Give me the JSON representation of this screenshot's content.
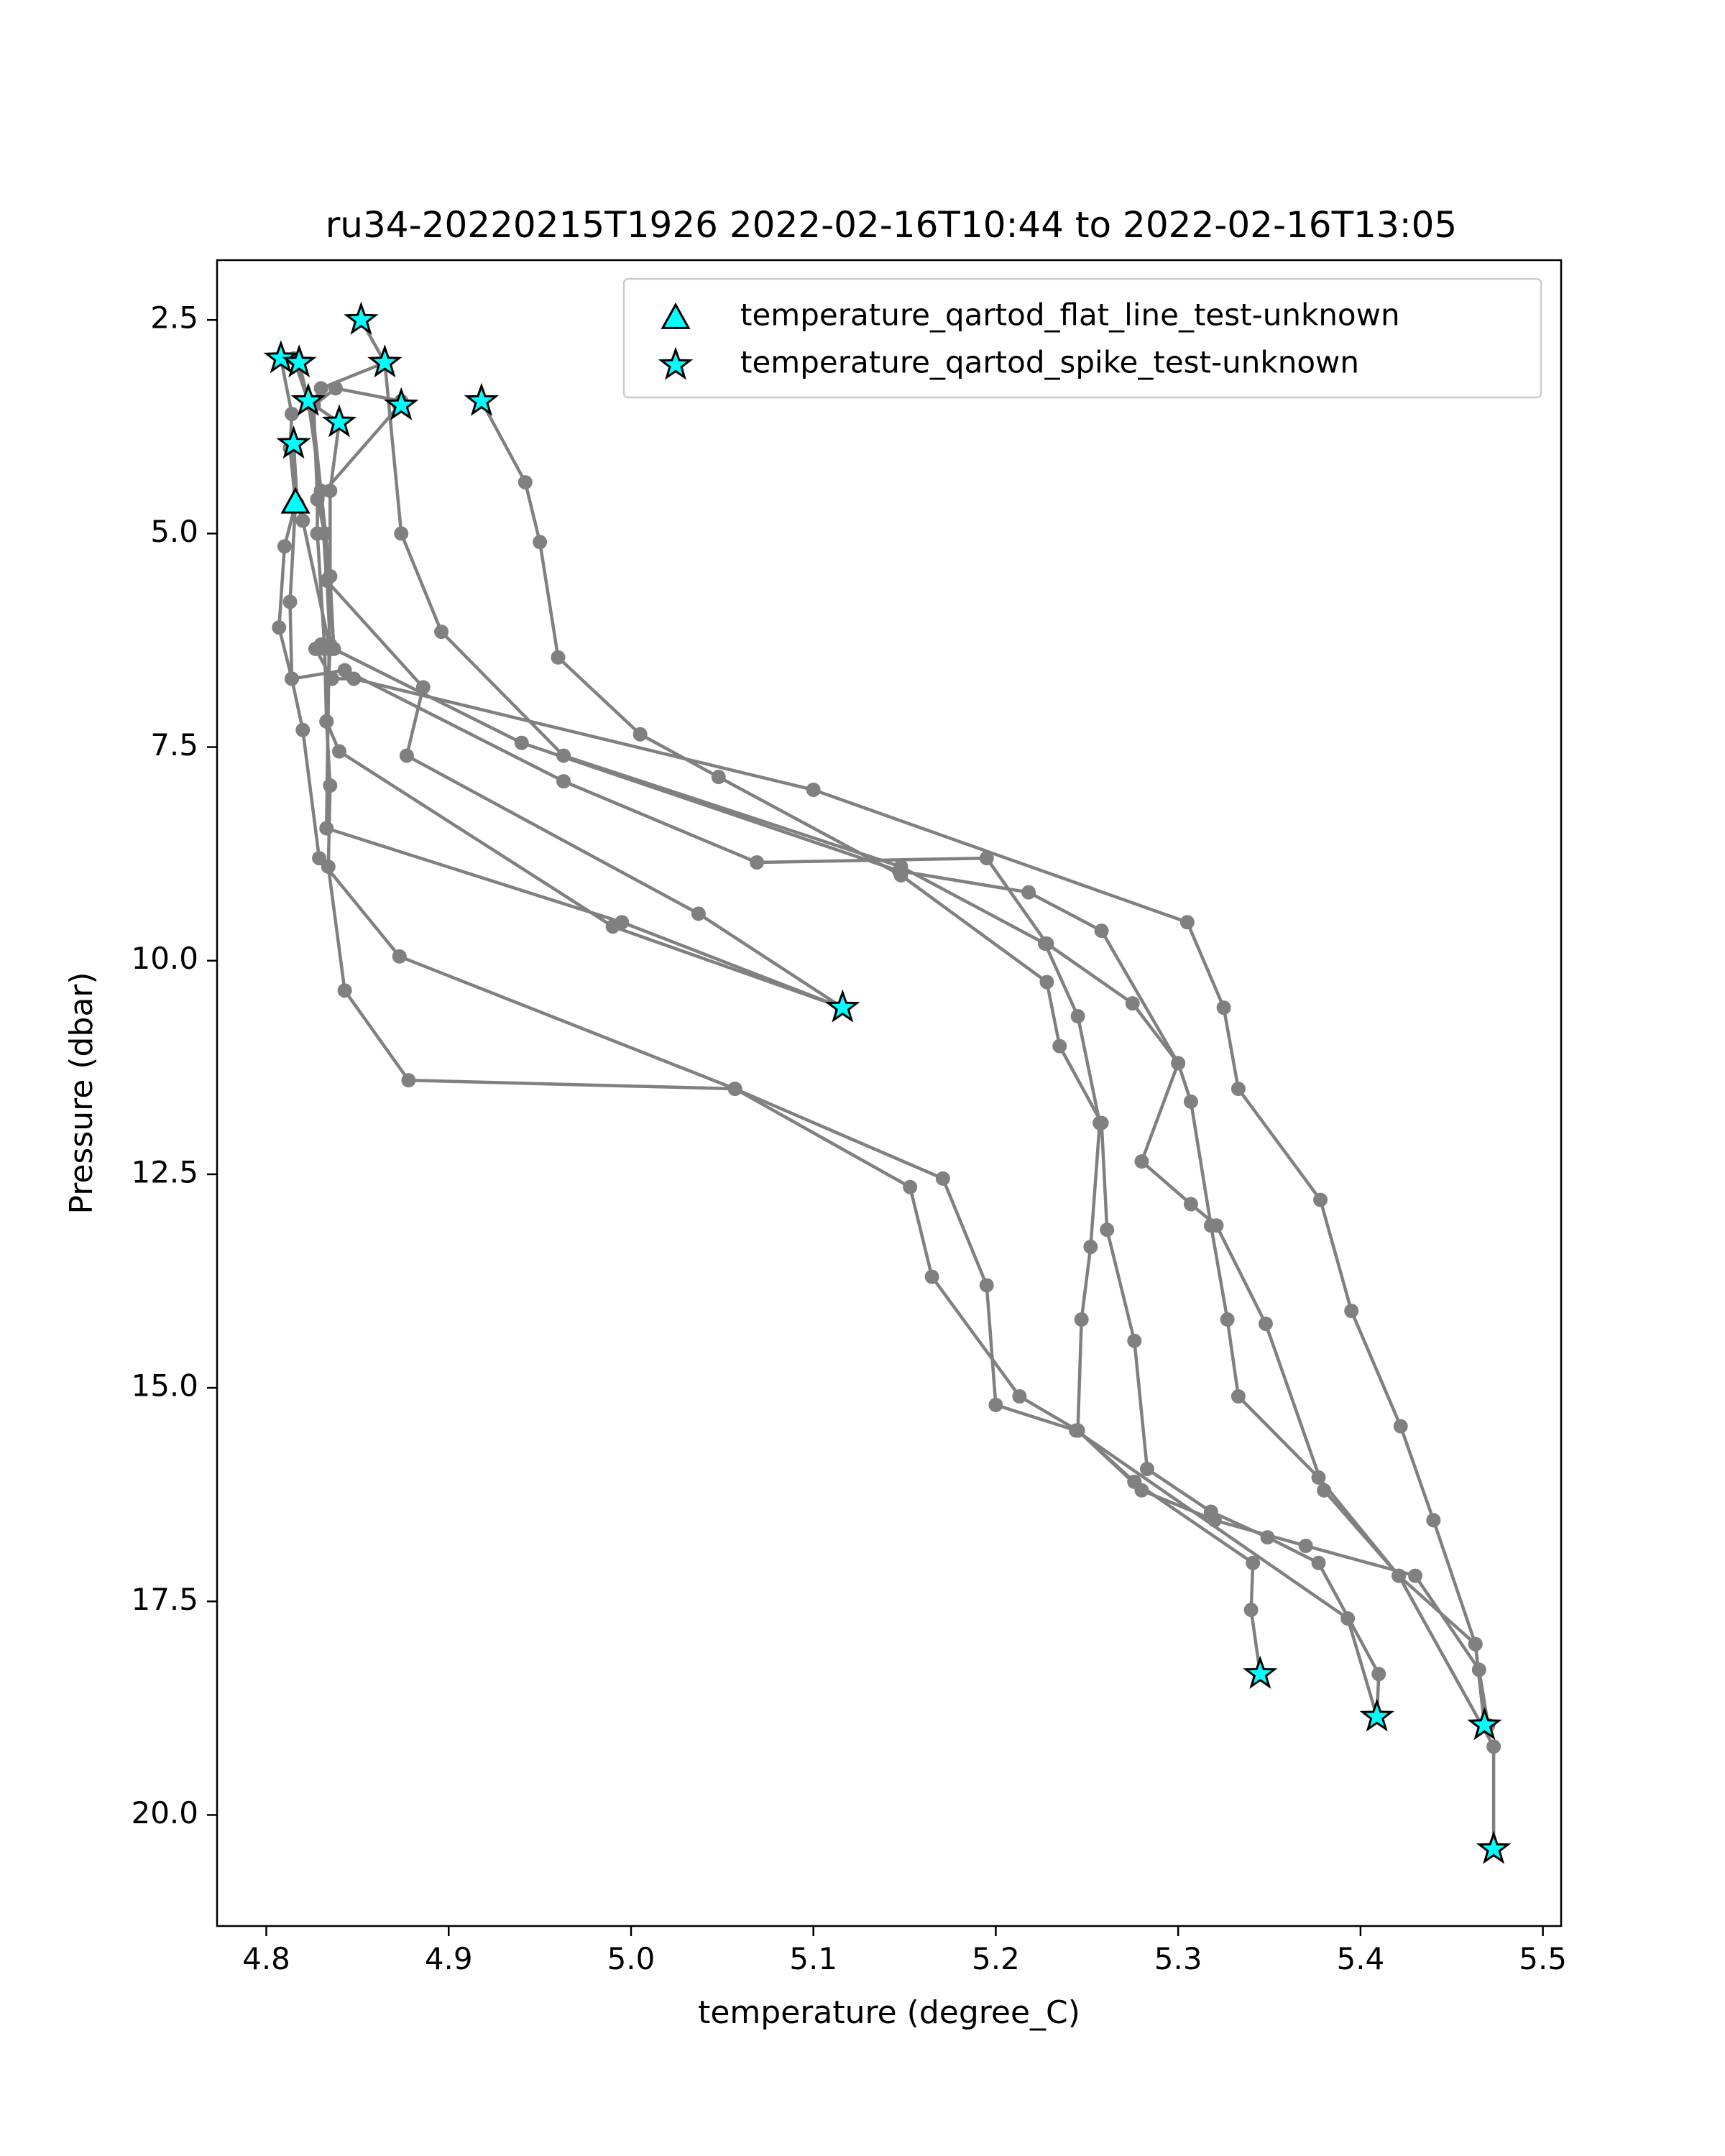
{
  "chart_data": {
    "type": "line",
    "title": "ru34-20220215T1926 2022-02-16T10:44 to 2022-02-16T13:05",
    "xlabel": "temperature (degree_C)",
    "ylabel": "Pressure (dbar)",
    "xlim": [
      4.773,
      5.51
    ],
    "ylim": [
      21.3,
      1.8
    ],
    "y_inverted": true,
    "xticks": [
      4.8,
      4.9,
      5.0,
      5.1,
      5.2,
      5.3,
      5.4,
      5.5
    ],
    "xtick_labels": [
      "4.8",
      "4.9",
      "5.0",
      "5.1",
      "5.2",
      "5.3",
      "5.4",
      "5.5"
    ],
    "yticks": [
      2.5,
      5.0,
      7.5,
      10.0,
      12.5,
      15.0,
      17.5,
      20.0
    ],
    "ytick_labels": [
      "2.5",
      "5.0",
      "7.5",
      "10.0",
      "12.5",
      "15.0",
      "17.5",
      "20.0"
    ],
    "grid": false,
    "legend_position": "top-right",
    "line_color": "#808080",
    "flag_color": "#00ffff",
    "flag_edge_color": "#000000",
    "profiles": [
      [
        [
          4.852,
          2.5
        ],
        [
          4.865,
          3.0
        ],
        [
          4.874,
          5.0
        ],
        [
          4.896,
          6.15
        ],
        [
          4.963,
          7.6
        ],
        [
          5.148,
          8.9
        ],
        [
          5.227,
          9.8
        ],
        [
          5.245,
          10.65
        ],
        [
          5.257,
          11.9
        ],
        [
          5.252,
          13.35
        ],
        [
          5.247,
          14.2
        ],
        [
          5.245,
          15.5
        ],
        [
          5.276,
          16.1
        ],
        [
          5.341,
          17.05
        ],
        [
          5.34,
          17.6
        ],
        [
          5.345,
          18.35
        ]
      ],
      [
        [
          4.918,
          3.45
        ],
        [
          4.942,
          4.4
        ],
        [
          4.95,
          5.1
        ],
        [
          4.96,
          6.45
        ],
        [
          5.005,
          7.35
        ],
        [
          5.048,
          7.85
        ],
        [
          5.148,
          9.0
        ],
        [
          5.228,
          10.25
        ],
        [
          5.235,
          11.0
        ],
        [
          5.258,
          11.9
        ],
        [
          5.261,
          13.15
        ],
        [
          5.276,
          14.45
        ],
        [
          5.283,
          15.95
        ],
        [
          5.318,
          16.45
        ],
        [
          5.349,
          16.75
        ],
        [
          5.377,
          17.05
        ],
        [
          5.41,
          18.35
        ],
        [
          5.409,
          18.85
        ]
      ],
      [
        [
          4.873,
          3.5
        ],
        [
          4.828,
          4.6
        ],
        [
          4.828,
          5.0
        ],
        [
          4.832,
          6.35
        ],
        [
          4.833,
          7.2
        ],
        [
          4.835,
          7.95
        ],
        [
          4.834,
          8.9
        ],
        [
          4.843,
          10.35
        ],
        [
          4.878,
          11.4
        ],
        [
          5.057,
          11.5
        ],
        [
          5.153,
          12.65
        ],
        [
          5.165,
          13.7
        ],
        [
          5.213,
          15.1
        ],
        [
          5.245,
          15.5
        ],
        [
          5.28,
          16.2
        ],
        [
          5.32,
          16.55
        ],
        [
          5.37,
          16.85
        ],
        [
          5.43,
          17.2
        ],
        [
          5.465,
          18.3
        ],
        [
          5.47,
          18.95
        ]
      ],
      [
        [
          4.815,
          3.95
        ],
        [
          4.816,
          4.65
        ],
        [
          4.81,
          5.15
        ],
        [
          4.807,
          6.1
        ],
        [
          4.814,
          6.7
        ],
        [
          4.82,
          7.3
        ],
        [
          4.829,
          8.8
        ],
        [
          4.873,
          9.95
        ],
        [
          5.057,
          11.5
        ],
        [
          5.171,
          12.55
        ],
        [
          5.195,
          13.8
        ],
        [
          5.2,
          15.2
        ],
        [
          5.244,
          15.5
        ],
        [
          5.393,
          17.7
        ],
        [
          5.409,
          18.85
        ]
      ],
      [
        [
          4.808,
          2.95
        ],
        [
          4.814,
          3.6
        ],
        [
          4.813,
          4.0
        ],
        [
          4.816,
          4.65
        ],
        [
          4.813,
          5.8
        ],
        [
          4.814,
          6.7
        ],
        [
          4.843,
          6.6
        ],
        [
          4.963,
          7.9
        ],
        [
          5.069,
          8.85
        ],
        [
          5.195,
          8.8
        ],
        [
          5.228,
          9.8
        ],
        [
          5.275,
          10.5
        ],
        [
          5.3,
          11.2
        ],
        [
          5.28,
          12.35
        ],
        [
          5.307,
          12.85
        ],
        [
          5.321,
          13.1
        ],
        [
          5.348,
          14.25
        ],
        [
          5.38,
          16.2
        ],
        [
          5.421,
          17.2
        ],
        [
          5.463,
          18.0
        ],
        [
          5.468,
          18.95
        ]
      ],
      [
        [
          4.818,
          3.0
        ],
        [
          4.823,
          3.45
        ],
        [
          4.83,
          4.5
        ],
        [
          4.833,
          5.55
        ],
        [
          4.886,
          6.8
        ],
        [
          4.877,
          7.6
        ],
        [
          5.037,
          9.45
        ],
        [
          5.116,
          10.55
        ]
      ],
      [
        [
          4.815,
          2.95
        ],
        [
          4.823,
          3.45
        ],
        [
          4.84,
          3.7
        ],
        [
          4.835,
          4.5
        ],
        [
          4.835,
          5.5
        ],
        [
          4.837,
          6.35
        ],
        [
          4.94,
          7.45
        ],
        [
          5.147,
          8.95
        ],
        [
          5.218,
          9.2
        ],
        [
          5.258,
          9.65
        ],
        [
          5.3,
          11.2
        ],
        [
          5.307,
          11.65
        ],
        [
          5.318,
          13.1
        ],
        [
          5.327,
          14.2
        ],
        [
          5.333,
          15.1
        ],
        [
          5.377,
          16.05
        ],
        [
          5.421,
          17.2
        ],
        [
          5.473,
          19.2
        ],
        [
          5.473,
          20.4
        ]
      ],
      [
        [
          4.815,
          3.95
        ],
        [
          4.817,
          4.65
        ],
        [
          4.82,
          4.85
        ],
        [
          4.835,
          6.35
        ],
        [
          4.833,
          7.2
        ],
        [
          4.84,
          7.55
        ],
        [
          4.99,
          9.6
        ],
        [
          5.116,
          10.55
        ]
      ],
      [
        [
          4.865,
          3.0
        ],
        [
          4.83,
          3.3
        ],
        [
          4.825,
          3.5
        ],
        [
          4.83,
          4.5
        ],
        [
          4.835,
          5.5
        ],
        [
          4.833,
          8.45
        ],
        [
          4.995,
          9.55
        ],
        [
          5.116,
          10.55
        ]
      ],
      [
        [
          4.874,
          3.45
        ],
        [
          4.838,
          3.3
        ],
        [
          4.826,
          3.5
        ],
        [
          4.828,
          4.6
        ],
        [
          4.832,
          5.0
        ],
        [
          4.835,
          6.3
        ],
        [
          4.83,
          6.3
        ],
        [
          4.827,
          6.35
        ],
        [
          4.836,
          6.7
        ],
        [
          4.848,
          6.7
        ],
        [
          5.1,
          8.0
        ],
        [
          5.305,
          9.55
        ],
        [
          5.325,
          10.55
        ],
        [
          5.333,
          11.5
        ],
        [
          5.378,
          12.8
        ],
        [
          5.395,
          14.1
        ],
        [
          5.422,
          15.45
        ],
        [
          5.44,
          16.55
        ],
        [
          5.463,
          18.0
        ],
        [
          5.468,
          18.95
        ]
      ]
    ],
    "profile_pressure_order_note_removed": null,
    "flat_line_points": [
      [
        4.816,
        4.65
      ]
    ],
    "spike_points": [
      [
        4.852,
        2.5
      ],
      [
        4.808,
        2.95
      ],
      [
        4.818,
        3.0
      ],
      [
        4.865,
        3.0
      ],
      [
        4.823,
        3.45
      ],
      [
        4.874,
        3.5
      ],
      [
        4.918,
        3.45
      ],
      [
        4.84,
        3.7
      ],
      [
        4.815,
        3.95
      ],
      [
        5.116,
        10.55
      ],
      [
        5.345,
        18.35
      ],
      [
        5.409,
        18.85
      ],
      [
        5.468,
        18.95
      ],
      [
        5.473,
        20.4
      ]
    ],
    "legend": [
      {
        "label": "temperature_qartod_flat_line_test-unknown",
        "marker": "triangle"
      },
      {
        "label": "temperature_qartod_spike_test-unknown",
        "marker": "star"
      }
    ]
  }
}
